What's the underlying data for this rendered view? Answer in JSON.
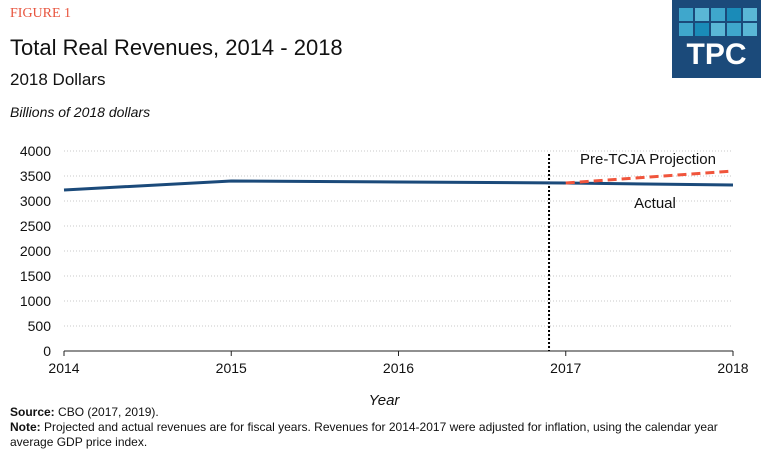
{
  "header": {
    "figure_label": "FIGURE 1",
    "title": "Total Real Revenues, 2014 - 2018",
    "subtitle": "2018 Dollars",
    "unit_label": "Billions of 2018 dollars",
    "logo_text": "TPC"
  },
  "chart_data": {
    "type": "line",
    "x": [
      2014,
      2015,
      2016,
      2017,
      2018
    ],
    "xlabel": "Year",
    "ylabel": "",
    "xlim": [
      2014,
      2018
    ],
    "ylim": [
      0,
      4000
    ],
    "yticks": [
      0,
      500,
      1000,
      1500,
      2000,
      2500,
      3000,
      3500,
      4000
    ],
    "xticks": [
      2014,
      2015,
      2016,
      2017,
      2018
    ],
    "grid": "horizontal dotted",
    "series": [
      {
        "name": "Actual",
        "x": [
          2014,
          2015,
          2016,
          2017,
          2018
        ],
        "values": [
          3220,
          3400,
          3380,
          3360,
          3320
        ],
        "color": "#1b4a7a",
        "style": "solid"
      },
      {
        "name": "Pre-TCJA Projection",
        "x": [
          2017,
          2018
        ],
        "values": [
          3360,
          3600
        ],
        "color": "#f0553c",
        "style": "dashed"
      }
    ],
    "vertical_marker": {
      "x": 2016.9,
      "style": "dotted",
      "color": "#000000"
    }
  },
  "notes": {
    "source_label": "Source:",
    "source_text": " CBO (2017, 2019).",
    "note_label": "Note:",
    "note_text": " Projected and actual revenues are for fiscal years. Revenues for 2014-2017 were adjusted for inflation, using the calendar year average GDP price index."
  }
}
